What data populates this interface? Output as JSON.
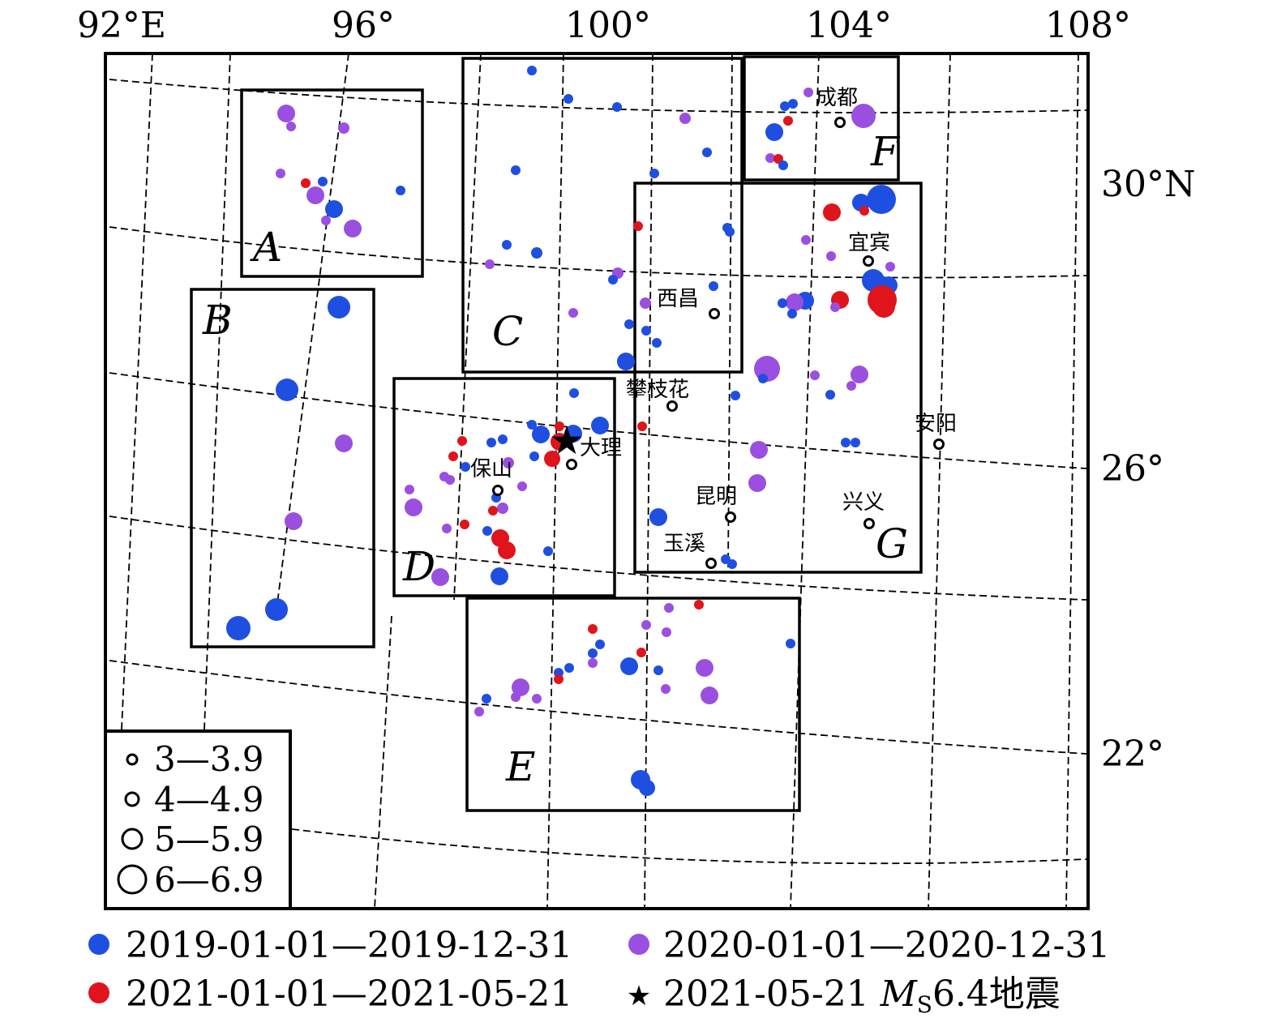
{
  "lon_labels": [
    "92°E",
    "96°",
    "100°",
    "104°",
    "108°"
  ],
  "lat_labels": [
    "30°N",
    "26°",
    "22°"
  ],
  "regions": [
    "A",
    "B",
    "C",
    "D",
    "E",
    "F",
    "G"
  ],
  "cities": [
    "成都",
    "宜宾",
    "西昌",
    "攀枝花",
    "大理",
    "保山",
    "安阳",
    "昆明",
    "兴义",
    "玉溪"
  ],
  "magnitude_legend": [
    "3—3.9",
    "4—4.9",
    "5—5.9",
    "6—6.9"
  ],
  "period_legend": {
    "p2019": "2019-01-01—2019-12-31",
    "p2020": "2020-01-01—2020-12-31",
    "p2021": "2021-01-01—2021-05-21",
    "quake_prefix": "2021-05-21 ",
    "quake_M": "M",
    "quake_sub": "S",
    "quake_suffix": "6.4地震"
  },
  "colors": {
    "y2019": "#1f4fe0",
    "y2020": "#9b4fe0",
    "y2021": "#e0141b",
    "mainshock": "#000000"
  },
  "mainshock_symbol": "star"
}
